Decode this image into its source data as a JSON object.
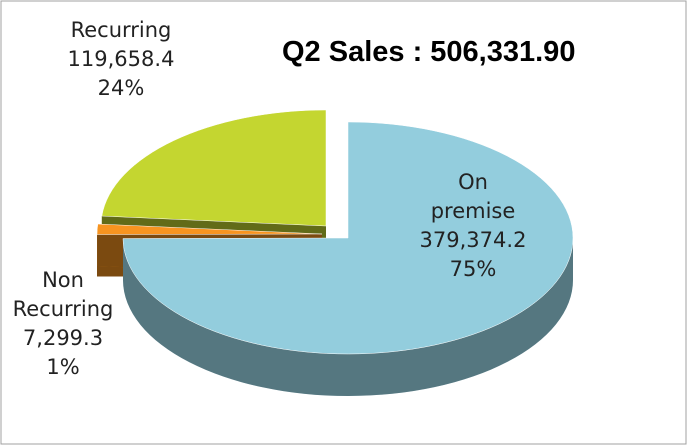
{
  "chart_data": {
    "type": "pie",
    "title": "Q2 Sales : 506,331.90",
    "categories": [
      "On premise",
      "Non Recurring",
      "Recurring"
    ],
    "values": [
      379374.2,
      7299.3,
      119658.4
    ],
    "value_labels": [
      "379,374.2",
      "7,299.3",
      "119,658.4"
    ],
    "percent_labels": [
      "75%",
      "1%",
      "24%"
    ],
    "colors": [
      "#93cddd",
      "#f79420",
      "#c4d630"
    ]
  }
}
